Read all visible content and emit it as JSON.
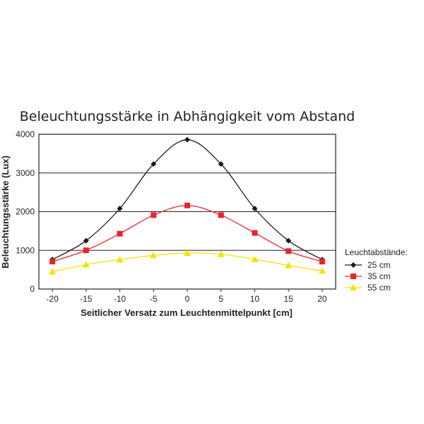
{
  "chart_data": {
    "type": "line",
    "title": "Beleuchtungsstärke in Abhängigkeit vom Abstand",
    "xlabel": "Seitlicher Versatz zum Leuchtenmittelpunkt [cm]",
    "ylabel": "Beleuchtungsstärke (Lux)",
    "x": [
      -20,
      -15,
      -10,
      -5,
      0,
      5,
      10,
      15,
      20
    ],
    "xlim": [
      -22,
      22
    ],
    "ylim": [
      0,
      4000
    ],
    "yticks": [
      0,
      1000,
      2000,
      3000,
      4000
    ],
    "xticks": [
      -20,
      -15,
      -10,
      -5,
      0,
      5,
      10,
      15,
      20
    ],
    "grid": "horizontal",
    "legend_title": "Leuchtabstände:",
    "legend_position": "right",
    "series": [
      {
        "name": "25 cm",
        "color": "#1a1a1a",
        "marker": "diamond",
        "values": [
          760,
          1250,
          2080,
          3230,
          3860,
          3230,
          2080,
          1250,
          760
        ]
      },
      {
        "name": "35 cm",
        "color": "#e8232a",
        "marker": "square",
        "values": [
          710,
          1000,
          1430,
          1910,
          2160,
          1910,
          1450,
          980,
          710
        ]
      },
      {
        "name": "55 cm",
        "color": "#f2e300",
        "marker": "triangle",
        "values": [
          450,
          630,
          760,
          870,
          930,
          900,
          770,
          610,
          470
        ]
      }
    ]
  }
}
